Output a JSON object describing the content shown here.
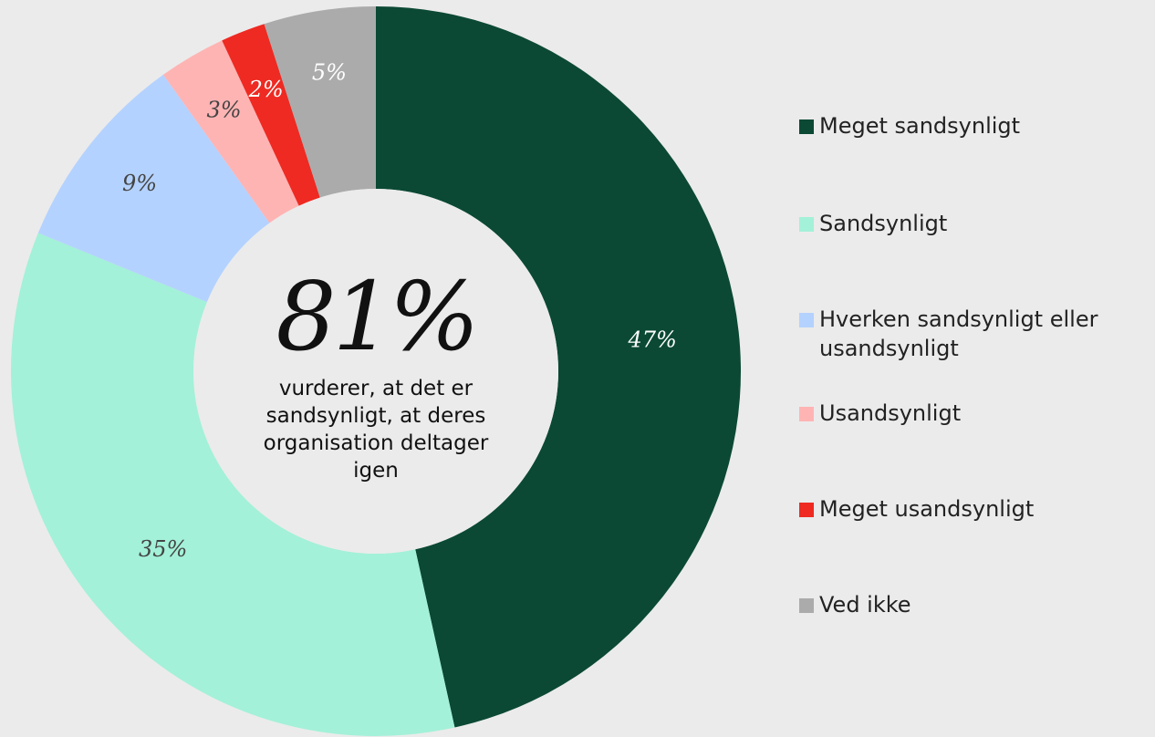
{
  "chart_data": {
    "type": "donut",
    "categories": [
      "Meget sandsynligt",
      "Sandsynligt",
      "Hverken sandsynligt eller usandsynligt",
      "Usandsynligt",
      "Meget usandsynligt",
      "Ved ikke"
    ],
    "values": [
      47,
      35,
      9,
      3,
      2,
      5
    ],
    "value_labels": [
      "47%",
      "35%",
      "9%",
      "3%",
      "2%",
      "5%"
    ],
    "colors": [
      "#0b4934",
      "#a3f1d8",
      "#b4d2ff",
      "#ffb4b4",
      "#ee2a22",
      "#ababab"
    ],
    "center_value": "81%",
    "center_text": "vurderer, at det er sandsynligt, at deres organisation deltager igen",
    "legend": "right"
  }
}
